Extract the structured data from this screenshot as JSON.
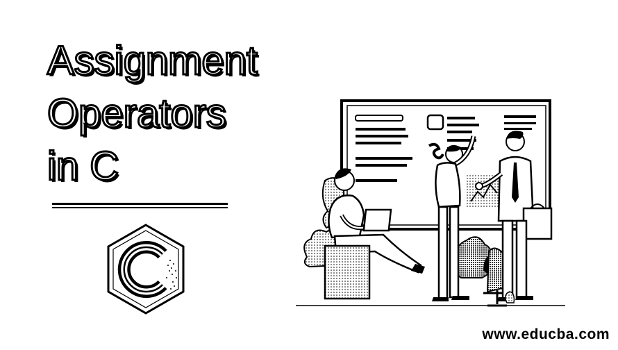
{
  "title": {
    "line1": "Assignment",
    "line2": "Operators",
    "line3": "in C"
  },
  "logo": {
    "letter": "C",
    "icon": "c-language-logo-icon"
  },
  "illustration": {
    "icon": "team-whiteboard-illustration"
  },
  "footer": {
    "url": "www.educba.com"
  },
  "colors": {
    "ink": "#000000",
    "paper": "#ffffff"
  }
}
